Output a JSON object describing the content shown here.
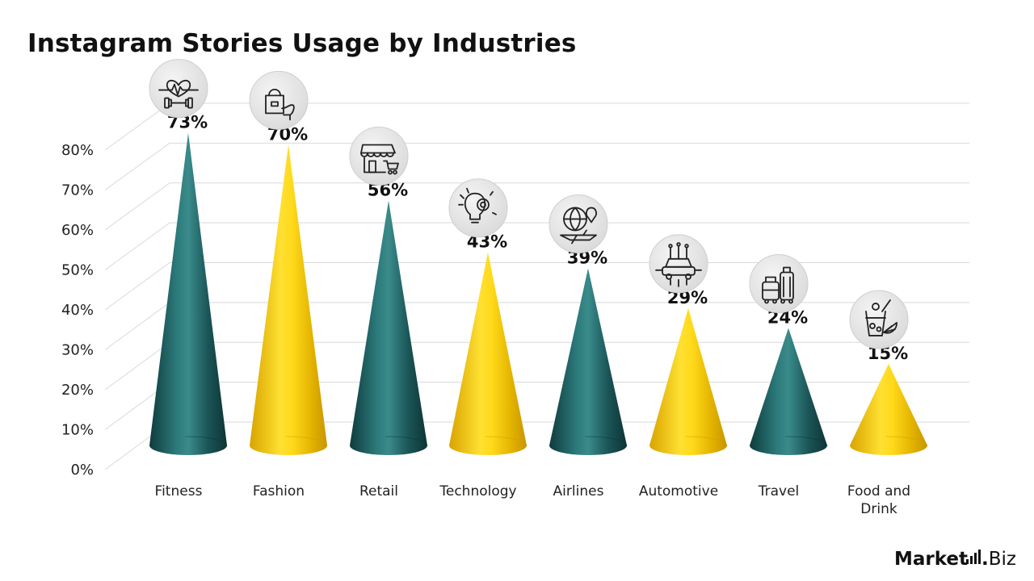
{
  "chart_data": {
    "type": "bar",
    "title": "Instagram Stories Usage by Industries",
    "categories": [
      "Fitness",
      "Fashion",
      "Retail",
      "Technology",
      "Airlines",
      "Automotive",
      "Travel",
      "Food and Drink"
    ],
    "values": [
      73,
      70,
      56,
      43,
      39,
      29,
      24,
      15
    ],
    "value_labels": [
      "73%",
      "70%",
      "56%",
      "43%",
      "39%",
      "29%",
      "24%",
      "15%"
    ],
    "yticks": [
      "0%",
      "10%",
      "20%",
      "30%",
      "40%",
      "50%",
      "60%",
      "70%",
      "80%"
    ],
    "ylim": [
      0,
      80
    ],
    "grid": true,
    "legend": "none",
    "bar_shape": "cone",
    "colors": [
      "#1d5a5c",
      "#f2c200",
      "#1d5a5c",
      "#f2c200",
      "#1d5a5c",
      "#f2c200",
      "#1d5a5c",
      "#f2c200"
    ],
    "icons": [
      "heartbeat-dumbbell-icon",
      "handbag-heel-icon",
      "storefront-cart-icon",
      "lightbulb-gear-icon",
      "globe-airplane-icon",
      "car-circuit-icon",
      "luggage-icon",
      "cocktail-lemon-icon"
    ]
  },
  "brand": {
    "bold": "Market",
    "dot": ".",
    "rest": "Biz"
  }
}
